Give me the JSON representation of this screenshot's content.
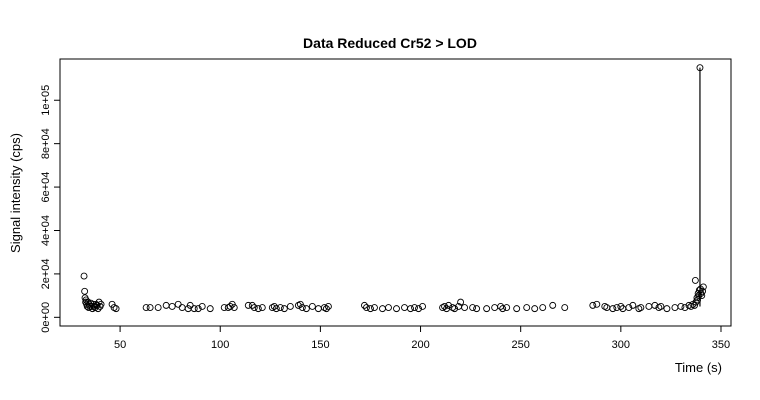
{
  "chart_data": {
    "type": "scatter",
    "title": "Data Reduced Cr52 > LOD",
    "xlabel": "Time (s)",
    "ylabel": "Signal intensity (cps)",
    "xlim": [
      20,
      355
    ],
    "ylim": [
      -4000,
      119000
    ],
    "xticks": [
      50,
      100,
      150,
      200,
      250,
      300,
      350
    ],
    "xtick_labels": [
      "50",
      "100",
      "150",
      "200",
      "250",
      "300",
      "350"
    ],
    "yticks": [
      0,
      20000,
      40000,
      60000,
      80000,
      100000
    ],
    "ytick_labels": [
      "0e+00",
      "2e+04",
      "4e+04",
      "6e+04",
      "8e+04",
      "1e+05"
    ],
    "grid": false,
    "legend": "none",
    "series": [
      {
        "points": [
          [
            32,
            19000
          ],
          [
            32.3,
            12000
          ],
          [
            32.5,
            9000
          ],
          [
            32.8,
            7000
          ],
          [
            33,
            8000
          ],
          [
            33.3,
            6000
          ],
          [
            33.6,
            5000
          ],
          [
            34,
            7000
          ],
          [
            34.3,
            4500
          ],
          [
            34.6,
            6000
          ],
          [
            35,
            5000
          ],
          [
            35.4,
            6500
          ],
          [
            35.8,
            5000
          ],
          [
            36.2,
            4000
          ],
          [
            36.6,
            6000
          ],
          [
            37,
            5000
          ],
          [
            37.5,
            4500
          ],
          [
            38,
            6000
          ],
          [
            38.5,
            5500
          ],
          [
            39,
            4000
          ],
          [
            39.5,
            7000
          ],
          [
            40,
            5000
          ],
          [
            40.5,
            6000
          ],
          [
            46,
            6000
          ],
          [
            47,
            4500
          ],
          [
            48,
            4000
          ],
          [
            63,
            4500
          ],
          [
            65,
            4500
          ],
          [
            69,
            4500
          ],
          [
            73,
            5500
          ],
          [
            76,
            5000
          ],
          [
            79,
            6000
          ],
          [
            81,
            4500
          ],
          [
            84,
            4000
          ],
          [
            85,
            5500
          ],
          [
            87,
            4000
          ],
          [
            89,
            4000
          ],
          [
            91,
            5000
          ],
          [
            95,
            4000
          ],
          [
            102,
            4500
          ],
          [
            104,
            4500
          ],
          [
            105,
            5000
          ],
          [
            106,
            6000
          ],
          [
            107,
            4500
          ],
          [
            114,
            5500
          ],
          [
            116,
            5500
          ],
          [
            117,
            4500
          ],
          [
            119,
            4000
          ],
          [
            121,
            4500
          ],
          [
            126,
            4500
          ],
          [
            127,
            5000
          ],
          [
            128,
            4000
          ],
          [
            130,
            4500
          ],
          [
            132,
            4000
          ],
          [
            135,
            5000
          ],
          [
            139,
            5500
          ],
          [
            140,
            6000
          ],
          [
            141,
            4500
          ],
          [
            143,
            4000
          ],
          [
            146,
            5000
          ],
          [
            149,
            4000
          ],
          [
            152,
            4500
          ],
          [
            153,
            4000
          ],
          [
            154,
            5000
          ],
          [
            172,
            5500
          ],
          [
            173,
            4500
          ],
          [
            175,
            4000
          ],
          [
            177,
            4500
          ],
          [
            181,
            4000
          ],
          [
            184,
            4500
          ],
          [
            188,
            4000
          ],
          [
            192,
            4500
          ],
          [
            195,
            4000
          ],
          [
            197,
            4500
          ],
          [
            199,
            4000
          ],
          [
            201,
            5000
          ],
          [
            211,
            4500
          ],
          [
            212,
            5000
          ],
          [
            213,
            4000
          ],
          [
            214,
            5500
          ],
          [
            216,
            4500
          ],
          [
            217,
            4000
          ],
          [
            219,
            5000
          ],
          [
            220,
            7000
          ],
          [
            222,
            4500
          ],
          [
            226,
            4500
          ],
          [
            228,
            4000
          ],
          [
            233,
            4000
          ],
          [
            237,
            4500
          ],
          [
            240,
            5000
          ],
          [
            241,
            4000
          ],
          [
            243,
            4500
          ],
          [
            248,
            4000
          ],
          [
            253,
            4500
          ],
          [
            257,
            4000
          ],
          [
            261,
            4500
          ],
          [
            266,
            5500
          ],
          [
            272,
            4500
          ],
          [
            286,
            5500
          ],
          [
            288,
            6000
          ],
          [
            292,
            5000
          ],
          [
            293,
            4500
          ],
          [
            296,
            4000
          ],
          [
            298,
            4500
          ],
          [
            300,
            5000
          ],
          [
            301,
            4000
          ],
          [
            304,
            4500
          ],
          [
            306,
            5500
          ],
          [
            309,
            4000
          ],
          [
            310,
            4500
          ],
          [
            314,
            5000
          ],
          [
            317,
            5500
          ],
          [
            319,
            4500
          ],
          [
            320,
            5000
          ],
          [
            323,
            4000
          ],
          [
            327,
            4500
          ],
          [
            330,
            5000
          ],
          [
            332,
            4500
          ],
          [
            334,
            5500
          ],
          [
            335,
            5000
          ],
          [
            336,
            6000
          ],
          [
            336.8,
            5500
          ],
          [
            337.5,
            7000
          ],
          [
            338,
            9000
          ],
          [
            338.3,
            8000
          ],
          [
            338.6,
            11000
          ],
          [
            338.9,
            10000
          ],
          [
            339.2,
            12500
          ],
          [
            339.5,
            115000
          ],
          [
            339.8,
            13000
          ],
          [
            340,
            11000
          ],
          [
            340.4,
            10000
          ],
          [
            340.8,
            12000
          ],
          [
            341.2,
            14000
          ],
          [
            337.2,
            17000
          ]
        ]
      }
    ],
    "vertical_line": {
      "x": 339.5,
      "y_from": 5000,
      "y_to": 115000
    }
  }
}
